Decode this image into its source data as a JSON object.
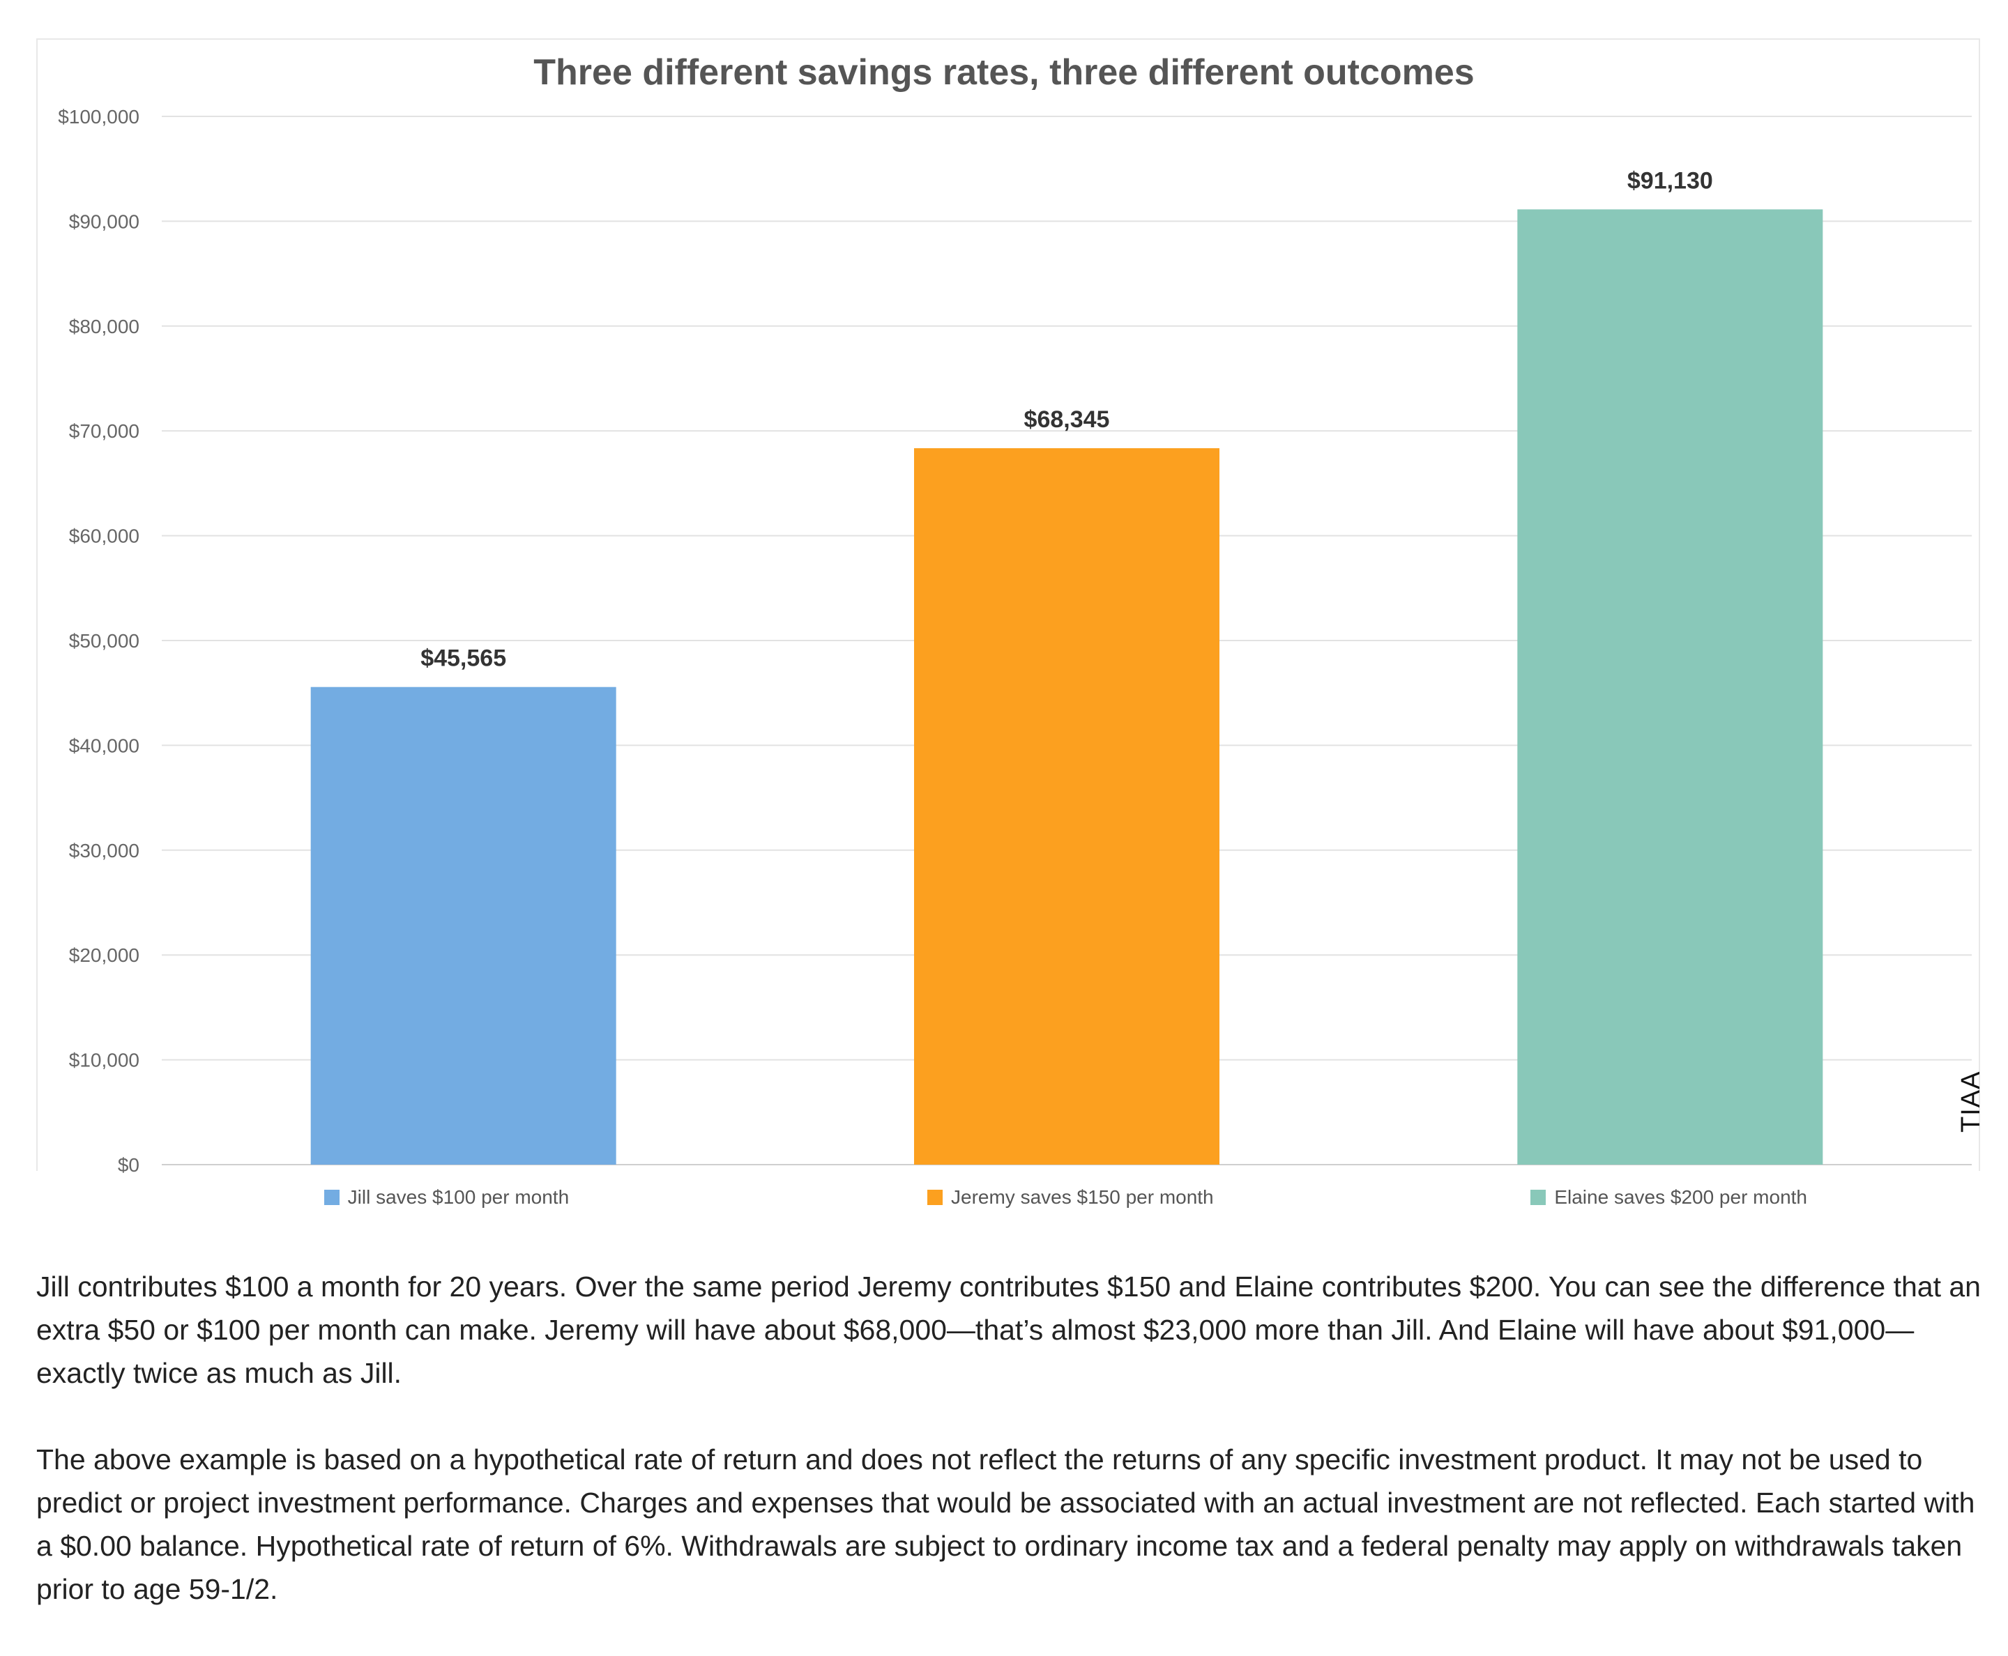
{
  "chart_data": {
    "type": "bar",
    "title": "Three different savings rates, three different outcomes",
    "categories": [
      "Jill saves $100 per month",
      "Jeremy saves $150 per month",
      "Elaine saves $200 per month"
    ],
    "values": [
      45565,
      68345,
      91130
    ],
    "value_labels": [
      "$45,565",
      "$68,345",
      "$91,130"
    ],
    "colors": [
      "#73ACE2",
      "#FCA01F",
      "#89C8B9"
    ],
    "ylim": [
      0,
      100000
    ],
    "yticks": [
      "$0",
      "$10,000",
      "$20,000",
      "$30,000",
      "$40,000",
      "$50,000",
      "$60,000",
      "$70,000",
      "$80,000",
      "$90,000",
      "$100,000"
    ],
    "xlabel": "",
    "ylabel": "",
    "grid": true,
    "legend_position": "bottom"
  },
  "source_mark": "TIAA",
  "caption": {
    "paragraph1": "Jill contributes $100 a month for 20 years. Over the same period Jeremy contributes $150 and Elaine contributes $200. You can see the difference that an extra $50 or $100 per month can make. Jeremy will have about $68,000—that’s almost $23,000 more than Jill. And Elaine will have about $91,000—exactly twice as much as Jill.",
    "paragraph2": "The above example is based on a hypothetical rate of return and does not reflect the returns of any specific investment product. It may not be used to predict or project investment performance. Charges and expenses that would be associated with an actual investment are not reflected. Each started with a $0.00 balance. Hypothetical rate of return of 6%. Withdrawals are subject to ordinary income tax and a federal penalty may apply on withdrawals taken prior to age 59-1/2."
  }
}
